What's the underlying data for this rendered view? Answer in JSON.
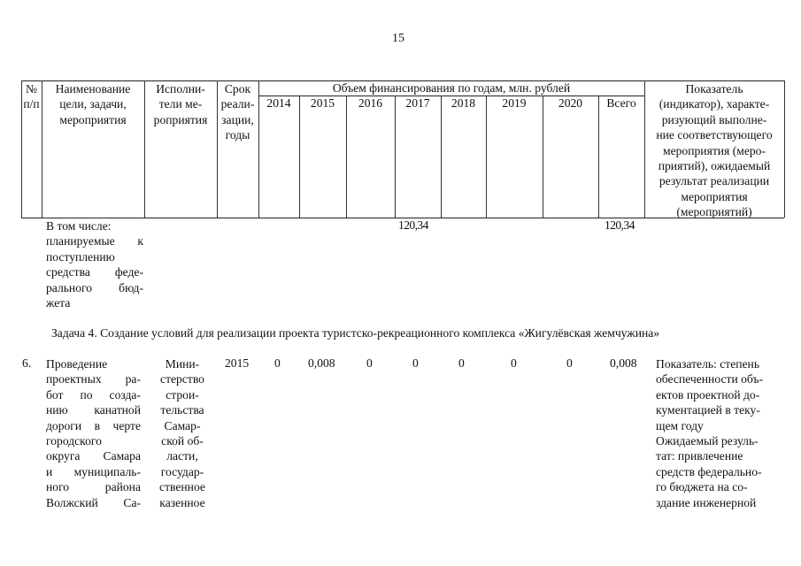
{
  "page_number": "15",
  "table": {
    "header": {
      "num": [
        "№",
        "п/п"
      ],
      "name": [
        "Наименование",
        "цели, задачи,",
        "мероприятия"
      ],
      "executors": [
        "Исполни-",
        "тели ме-",
        "роприятия"
      ],
      "term": [
        "Срок",
        "реали-",
        "зации,",
        "годы"
      ],
      "funding_title": "Объем финансирования по годам, млн. рублей",
      "years": [
        "2014",
        "2015",
        "2016",
        "2017",
        "2018",
        "2019",
        "2020",
        "Всего"
      ],
      "indicator": [
        "Показатель",
        "(индикатор), характе-",
        "ризующий выполне-",
        "ние соответствующего",
        "мероприятия (меро-",
        "приятий), ожидаемый",
        "результат реализации",
        "мероприятия",
        "(мероприятий)"
      ]
    },
    "subrow": {
      "name": [
        "В том числе:",
        "планируемые к",
        "поступлению",
        "средства феде-",
        "рального бюд-",
        "жета"
      ],
      "value_2017": "120,34",
      "total": "120,34"
    },
    "task_heading": "Задача 4. Создание условий для реализации проекта туристско-рекреационного комплекса «Жигулёвская жемчужина»",
    "row6": {
      "num": "6.",
      "name": [
        "Проведение",
        "проектных ра-",
        "бот по созда-",
        "нию канатной",
        "дороги в черте",
        "городского",
        "округа Самара",
        "и муниципаль-",
        "ного района",
        "Волжский Са-"
      ],
      "executors": [
        "Мини-",
        "стерство",
        "строи-",
        "тельства",
        "Самар-",
        "ской об-",
        "ласти,",
        "государ-",
        "ственное",
        "казенное"
      ],
      "term": "2015",
      "values": [
        "0",
        "0,008",
        "0",
        "0",
        "0",
        "0",
        "0",
        "0,008"
      ],
      "indicator": [
        "Показатель: степень",
        "обеспеченности объ-",
        "ектов проектной до-",
        "кументацией в теку-",
        "щем году",
        "Ожидаемый резуль-",
        "тат: привлечение",
        "средств федерально-",
        "го бюджета на со-",
        "здание инженерной"
      ]
    }
  }
}
